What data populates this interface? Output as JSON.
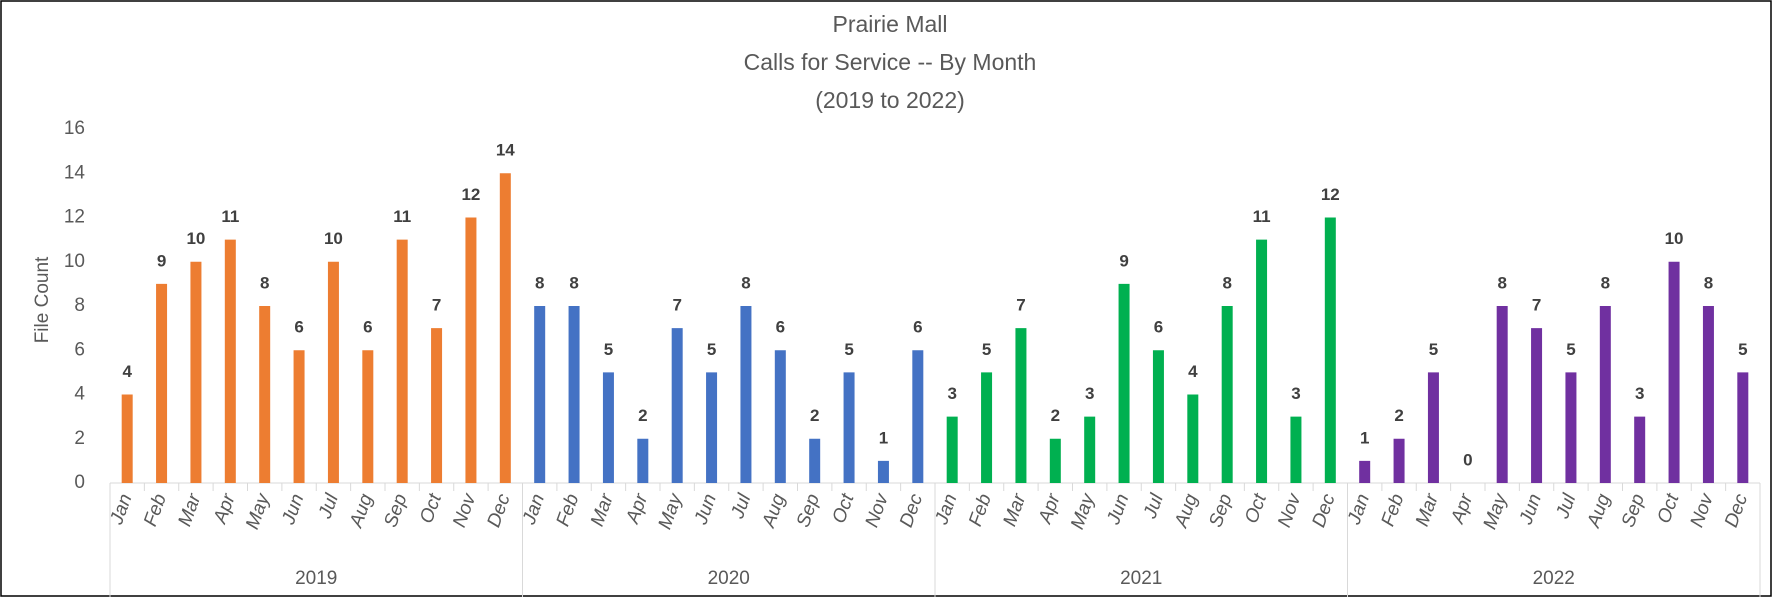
{
  "chart_data": {
    "type": "bar",
    "title": [
      "Prairie Mall",
      "Calls for Service -- By Month",
      "(2019 to 2022)"
    ],
    "y_label": "File Count",
    "categories": [
      "Jan",
      "Feb",
      "Mar",
      "Apr",
      "May",
      "Jun",
      "Jul",
      "Aug",
      "Sep",
      "Oct",
      "Nov",
      "Dec"
    ],
    "series": [
      {
        "name": "2019",
        "color": "#ed7d31",
        "values": [
          4,
          9,
          10,
          11,
          8,
          6,
          10,
          6,
          11,
          7,
          12,
          14
        ]
      },
      {
        "name": "2020",
        "color": "#4472c4",
        "values": [
          8,
          8,
          5,
          2,
          7,
          5,
          8,
          6,
          2,
          5,
          1,
          6
        ]
      },
      {
        "name": "2021",
        "color": "#00b050",
        "values": [
          3,
          5,
          7,
          2,
          3,
          9,
          6,
          4,
          8,
          11,
          3,
          12
        ]
      },
      {
        "name": "2022",
        "color": "#7030a0",
        "values": [
          1,
          2,
          5,
          0,
          8,
          7,
          5,
          8,
          3,
          10,
          8,
          5
        ]
      }
    ],
    "ylim": [
      0,
      16
    ],
    "yticks": [
      0,
      2,
      4,
      6,
      8,
      10,
      12,
      14,
      16
    ],
    "grid": false,
    "data_labels": true
  }
}
